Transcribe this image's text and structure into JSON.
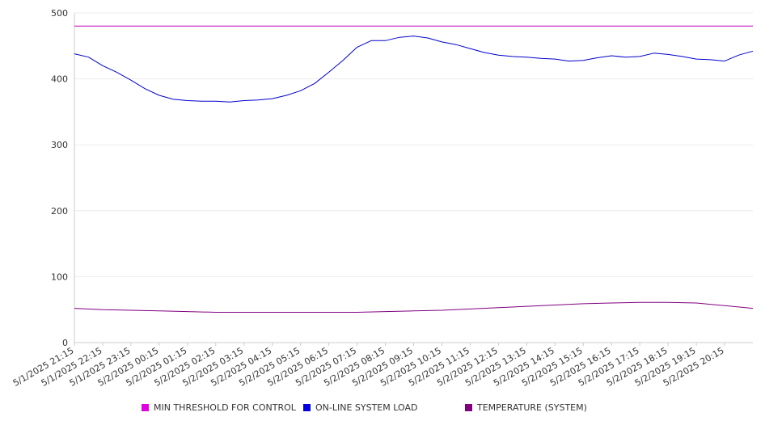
{
  "chart_data": {
    "type": "line",
    "title": "",
    "xlabel": "",
    "ylabel": "",
    "ylim": [
      0,
      500
    ],
    "y_ticks": [
      "0",
      "100",
      "200",
      "300",
      "400",
      "500"
    ],
    "x_ticks": [
      "5/1/2025 21:15",
      "5/1/2025 22:15",
      "5/1/2025 23:15",
      "5/2/2025 00:15",
      "5/2/2025 01:15",
      "5/2/2025 02:15",
      "5/2/2025 03:15",
      "5/2/2025 04:15",
      "5/2/2025 05:15",
      "5/2/2025 06:15",
      "5/2/2025 07:15",
      "5/2/2025 08:15",
      "5/2/2025 09:15",
      "5/2/2025 10:15",
      "5/2/2025 11:15",
      "5/2/2025 12:15",
      "5/2/2025 13:15",
      "5/2/2025 14:15",
      "5/2/2025 15:15",
      "5/2/2025 16:15",
      "5/2/2025 17:15",
      "5/2/2025 18:15",
      "5/2/2025 19:15",
      "5/2/2025 20:15"
    ],
    "grid": true,
    "legend_position": "bottom",
    "series": [
      {
        "name": "MIN THRESHOLD FOR CONTROL",
        "color": "#c000c0",
        "points": [
          [
            "5/1/2025 21:15",
            480
          ],
          [
            "5/2/2025 21:15",
            480
          ]
        ]
      },
      {
        "name": "ON-LINE SYSTEM LOAD",
        "color": "#0000cc",
        "points": [
          [
            "5/1/2025 21:15",
            438
          ],
          [
            "5/1/2025 21:45",
            433
          ],
          [
            "5/1/2025 22:15",
            420
          ],
          [
            "5/1/2025 22:45",
            410
          ],
          [
            "5/1/2025 23:15",
            398
          ],
          [
            "5/1/2025 23:45",
            385
          ],
          [
            "5/2/2025 00:15",
            375
          ],
          [
            "5/2/2025 00:45",
            369
          ],
          [
            "5/2/2025 01:15",
            367
          ],
          [
            "5/2/2025 01:45",
            366
          ],
          [
            "5/2/2025 02:15",
            366
          ],
          [
            "5/2/2025 02:45",
            365
          ],
          [
            "5/2/2025 03:15",
            367
          ],
          [
            "5/2/2025 03:45",
            368
          ],
          [
            "5/2/2025 04:15",
            370
          ],
          [
            "5/2/2025 04:45",
            375
          ],
          [
            "5/2/2025 05:15",
            382
          ],
          [
            "5/2/2025 05:45",
            393
          ],
          [
            "5/2/2025 06:15",
            410
          ],
          [
            "5/2/2025 06:45",
            428
          ],
          [
            "5/2/2025 07:15",
            448
          ],
          [
            "5/2/2025 07:45",
            458
          ],
          [
            "5/2/2025 08:15",
            458
          ],
          [
            "5/2/2025 08:45",
            463
          ],
          [
            "5/2/2025 09:15",
            465
          ],
          [
            "5/2/2025 09:45",
            462
          ],
          [
            "5/2/2025 10:15",
            456
          ],
          [
            "5/2/2025 10:45",
            452
          ],
          [
            "5/2/2025 11:15",
            446
          ],
          [
            "5/2/2025 11:45",
            440
          ],
          [
            "5/2/2025 12:15",
            436
          ],
          [
            "5/2/2025 12:45",
            434
          ],
          [
            "5/2/2025 13:15",
            433
          ],
          [
            "5/2/2025 13:45",
            431
          ],
          [
            "5/2/2025 14:15",
            430
          ],
          [
            "5/2/2025 14:45",
            427
          ],
          [
            "5/2/2025 15:15",
            428
          ],
          [
            "5/2/2025 15:45",
            432
          ],
          [
            "5/2/2025 16:15",
            435
          ],
          [
            "5/2/2025 16:45",
            433
          ],
          [
            "5/2/2025 17:15",
            434
          ],
          [
            "5/2/2025 17:45",
            439
          ],
          [
            "5/2/2025 18:15",
            437
          ],
          [
            "5/2/2025 18:45",
            434
          ],
          [
            "5/2/2025 19:15",
            430
          ],
          [
            "5/2/2025 19:45",
            429
          ],
          [
            "5/2/2025 20:15",
            427
          ],
          [
            "5/2/2025 20:45",
            436
          ],
          [
            "5/2/2025 21:15",
            442
          ]
        ]
      },
      {
        "name": "TEMPERATURE (SYSTEM)",
        "color": "#800080",
        "points": [
          [
            "5/1/2025 21:15",
            52
          ],
          [
            "5/1/2025 22:15",
            50
          ],
          [
            "5/1/2025 23:15",
            49
          ],
          [
            "5/2/2025 00:15",
            48
          ],
          [
            "5/2/2025 01:15",
            47
          ],
          [
            "5/2/2025 02:15",
            46
          ],
          [
            "5/2/2025 03:15",
            46
          ],
          [
            "5/2/2025 04:15",
            46
          ],
          [
            "5/2/2025 05:15",
            46
          ],
          [
            "5/2/2025 06:15",
            46
          ],
          [
            "5/2/2025 07:15",
            46
          ],
          [
            "5/2/2025 08:15",
            47
          ],
          [
            "5/2/2025 09:15",
            48
          ],
          [
            "5/2/2025 10:15",
            49
          ],
          [
            "5/2/2025 11:15",
            51
          ],
          [
            "5/2/2025 12:15",
            53
          ],
          [
            "5/2/2025 13:15",
            55
          ],
          [
            "5/2/2025 14:15",
            57
          ],
          [
            "5/2/2025 15:15",
            59
          ],
          [
            "5/2/2025 16:15",
            60
          ],
          [
            "5/2/2025 17:15",
            61
          ],
          [
            "5/2/2025 18:15",
            61
          ],
          [
            "5/2/2025 19:15",
            60
          ],
          [
            "5/2/2025 20:15",
            56
          ],
          [
            "5/2/2025 21:15",
            52
          ]
        ]
      }
    ]
  }
}
